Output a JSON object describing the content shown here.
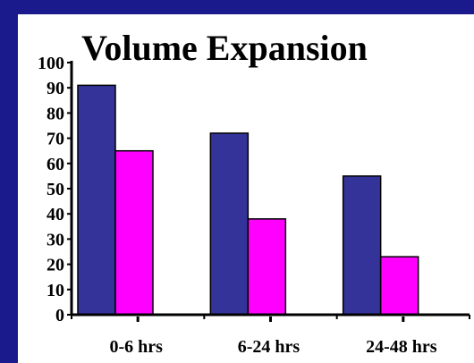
{
  "chart_data": {
    "type": "bar",
    "title": "Volume Expansion",
    "xlabel": "",
    "ylabel": "",
    "categories": [
      "0-6 hrs",
      "6-24 hrs",
      "24-48 hrs"
    ],
    "series": [
      {
        "values": [
          91,
          72,
          55
        ]
      },
      {
        "values": [
          65,
          38,
          23
        ]
      }
    ],
    "colors": [
      "#333399",
      "#ff00ff"
    ],
    "ylim": [
      0,
      100
    ],
    "yticks": [
      "0",
      "10",
      "20",
      "30",
      "40",
      "50",
      "60",
      "70",
      "80",
      "90",
      "100"
    ],
    "grid": false,
    "legend": "none"
  }
}
